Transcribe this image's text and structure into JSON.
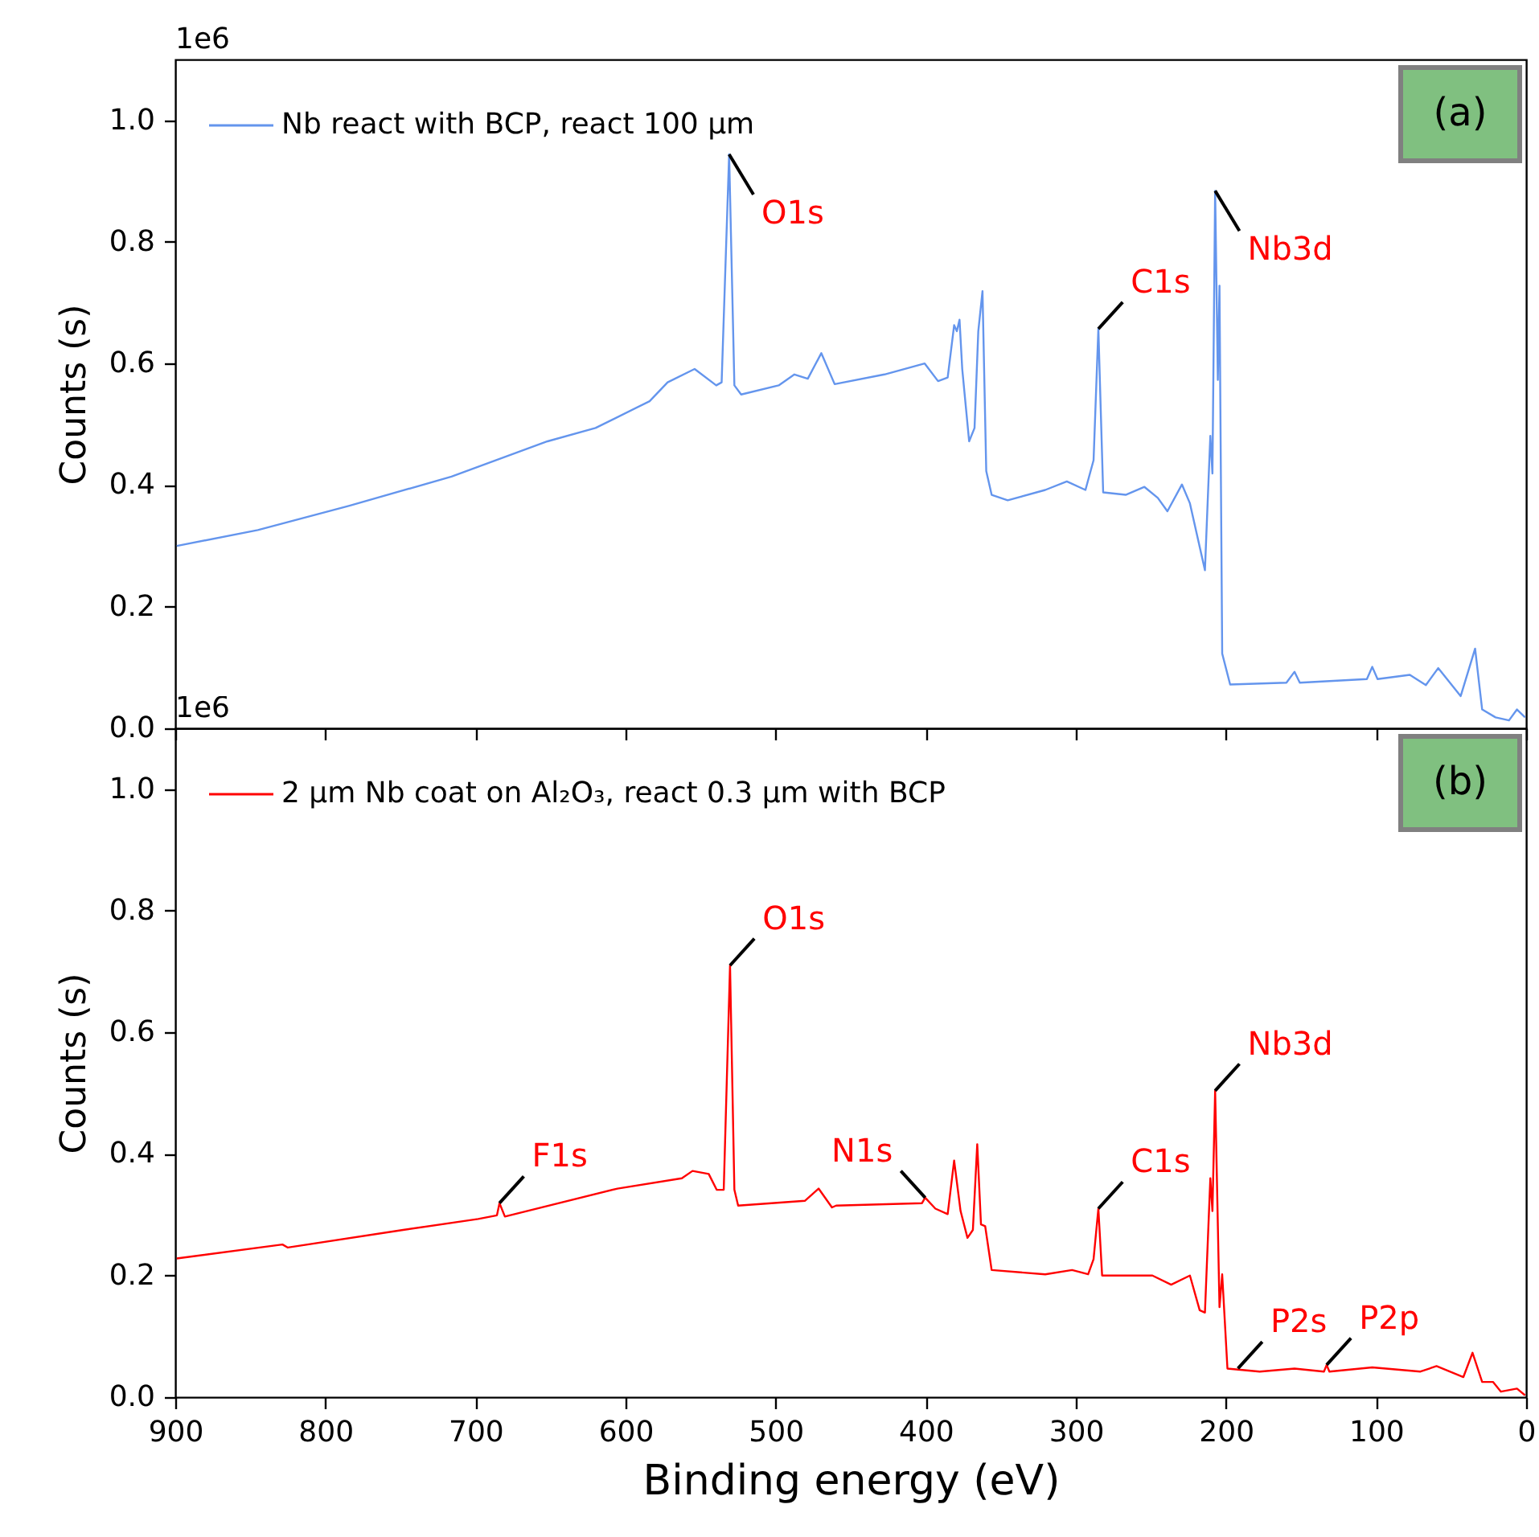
{
  "chart_data": [
    {
      "type": "line",
      "title": "(a)",
      "ylabel": "Counts (s)",
      "xlim": [
        900,
        0
      ],
      "xticks": [
        900,
        800,
        700,
        600,
        500,
        400,
        300,
        200,
        100,
        0
      ],
      "ylim": [
        0,
        1.1
      ],
      "yticks": [
        {
          "value": 0,
          "label": "0.0"
        },
        {
          "value": 0.2,
          "label": "0.2"
        },
        {
          "value": 0.4,
          "label": "0.4"
        },
        {
          "value": 0.6,
          "label": "0.6"
        },
        {
          "value": 0.8,
          "label": "0.8"
        },
        {
          "value": 1.0,
          "label": "1.0"
        }
      ],
      "tick_labels": "y",
      "legend": "top left",
      "series": [
        {
          "name": "Nb react with BCP, react 100 μm",
          "color": "#6495ed",
          "x": [
            899,
            845,
            784,
            716,
            652,
            620,
            584,
            572,
            554,
            539.6,
            536,
            531,
            527.5,
            523,
            498,
            487.5,
            478.6,
            469.6,
            460.7,
            427.5,
            400.7,
            391.8,
            385.4,
            381.1,
            379.3,
            377.5,
            375.7,
            371.1,
            367.5,
            365,
            362.2,
            359.7,
            356.1,
            345.4,
            320.4,
            306,
            293.6,
            288.2,
            285,
            281.8,
            266.8,
            254.3,
            245.4,
            239,
            229.3,
            224,
            214,
            211.5,
            210.4,
            209,
            207.2,
            205.4,
            204.3,
            202.5,
            197.2,
            159.7,
            154.3,
            150.8,
            106.1,
            102.5,
            99,
            77.5,
            66.8,
            58.6,
            43.6,
            34,
            29.3,
            20.4,
            11.4,
            6.1,
            0.7
          ],
          "values": [
            0.3,
            0.326,
            0.366,
            0.414,
            0.472,
            0.494,
            0.538,
            0.569,
            0.591,
            0.564,
            0.569,
            0.944,
            0.564,
            0.549,
            0.564,
            0.582,
            0.575,
            0.617,
            0.566,
            0.582,
            0.6,
            0.571,
            0.577,
            0.663,
            0.653,
            0.672,
            0.591,
            0.472,
            0.494,
            0.653,
            0.719,
            0.423,
            0.384,
            0.375,
            0.392,
            0.406,
            0.392,
            0.441,
            0.657,
            0.388,
            0.384,
            0.397,
            0.379,
            0.357,
            0.401,
            0.37,
            0.26,
            0.414,
            0.481,
            0.419,
            0.884,
            0.573,
            0.728,
            0.123,
            0.072,
            0.075,
            0.093,
            0.075,
            0.081,
            0.101,
            0.081,
            0.088,
            0.071,
            0.099,
            0.053,
            0.131,
            0.031,
            0.018,
            0.013,
            0.031,
            0.018
          ]
        }
      ],
      "annotations": [
        "1e6",
        {
          "text": "O1s",
          "x": 531,
          "y": 0.944
        },
        {
          "text": "C1s",
          "x": 285,
          "y": 0.657
        },
        {
          "text": "Nb3d",
          "x": 207.2,
          "y": 0.884
        }
      ]
    },
    {
      "type": "line",
      "title": "(b)",
      "xlabel": "Binding energy (eV)",
      "ylabel": "Counts (s)",
      "xlim": [
        900,
        0
      ],
      "xticks": [
        900,
        800,
        700,
        600,
        500,
        400,
        300,
        200,
        100,
        0
      ],
      "ylim": [
        0,
        1.1
      ],
      "yticks": [
        {
          "value": 0,
          "label": "0.0"
        },
        {
          "value": 0.2,
          "label": "0.2"
        },
        {
          "value": 0.4,
          "label": "0.4"
        },
        {
          "value": 0.6,
          "label": "0.6"
        },
        {
          "value": 0.8,
          "label": "0.8"
        },
        {
          "value": 1.0,
          "label": "1.0"
        }
      ],
      "legend": "top left",
      "series": [
        {
          "name": "2 μm Nb coat on Al₂O₃, react 0.3 μm with BCP",
          "color": "#ff0000",
          "x": [
            899,
            828.6,
            825,
            748.2,
            698.2,
            685.7,
            684,
            680.4,
            605.4,
            562.5,
            555.4,
            544.6,
            539.3,
            534.6,
            530.4,
            527.5,
            525,
            480.4,
            471.4,
            462.5,
            459.7,
            402.5,
            400.4,
            393.6,
            385.4,
            381.1,
            376.8,
            372.2,
            368.6,
            365.7,
            363.2,
            360.4,
            356.1,
            320.4,
            302.5,
            291.8,
            288.2,
            285,
            282.5,
            249,
            236.5,
            224,
            217.5,
            214,
            210.4,
            209,
            207.2,
            204.3,
            202.5,
            199,
            177.5,
            154.3,
            134.7,
            132.9,
            131.1,
            102.5,
            70.4,
            59.7,
            41.8,
            35.7,
            29.3,
            22.1,
            16.8,
            6.1,
            0.7
          ],
          "values": [
            0.228,
            0.251,
            0.246,
            0.275,
            0.293,
            0.299,
            0.319,
            0.297,
            0.343,
            0.36,
            0.372,
            0.367,
            0.341,
            0.341,
            0.71,
            0.341,
            0.315,
            0.323,
            0.343,
            0.312,
            0.315,
            0.319,
            0.328,
            0.31,
            0.301,
            0.389,
            0.306,
            0.262,
            0.275,
            0.416,
            0.284,
            0.281,
            0.209,
            0.202,
            0.209,
            0.202,
            0.227,
            0.31,
            0.2,
            0.2,
            0.185,
            0.2,
            0.143,
            0.139,
            0.36,
            0.306,
            0.504,
            0.148,
            0.202,
            0.047,
            0.042,
            0.047,
            0.042,
            0.053,
            0.042,
            0.049,
            0.042,
            0.051,
            0.033,
            0.073,
            0.025,
            0.025,
            0.009,
            0.014,
            0.003
          ]
        }
      ],
      "annotations": [
        "1e6",
        {
          "text": "F1s",
          "x": 684,
          "y": 0.319
        },
        {
          "text": "O1s",
          "x": 530.4,
          "y": 0.71
        },
        {
          "text": "N1s",
          "x": 400.4,
          "y": 0.328
        },
        {
          "text": "C1s",
          "x": 285,
          "y": 0.31
        },
        {
          "text": "Nb3d",
          "x": 207.2,
          "y": 0.504
        },
        {
          "text": "P2s",
          "x": 192,
          "y": 0.047
        },
        {
          "text": "P2p",
          "x": 132.9,
          "y": 0.053
        }
      ]
    }
  ]
}
